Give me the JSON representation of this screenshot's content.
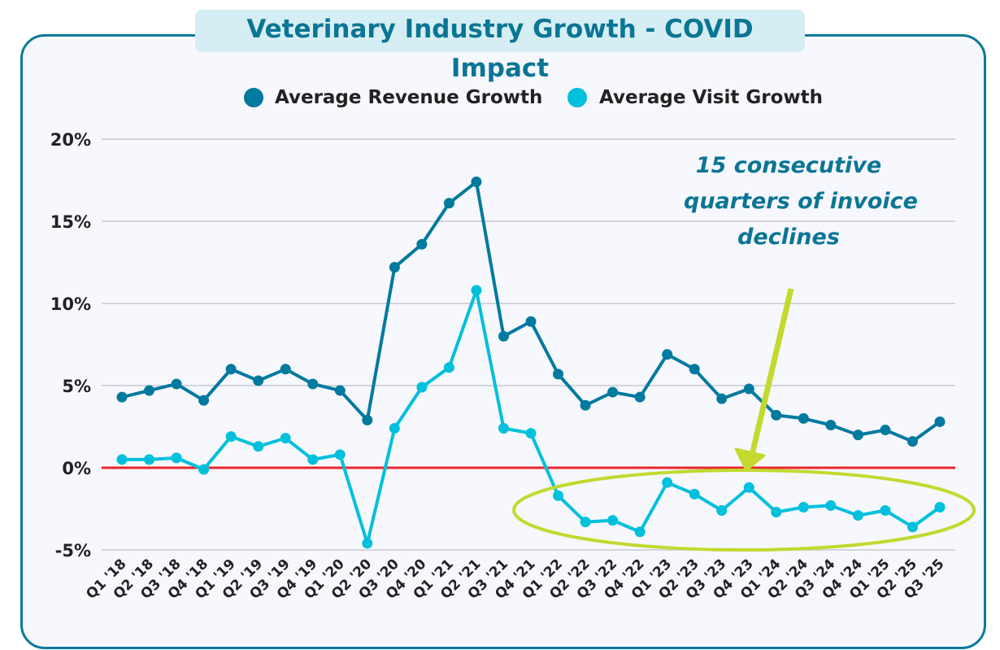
{
  "chart_data": {
    "type": "line",
    "title": "Veterinary Industry Growth - COVID Impact",
    "xlabel": "",
    "ylabel": "",
    "ylim": [
      -5,
      20
    ],
    "yticks": [
      "20%",
      "15%",
      "10%",
      "5%",
      "0%",
      "-5%"
    ],
    "ytick_values": [
      20,
      15,
      10,
      5,
      0,
      -5
    ],
    "grid": true,
    "legend": "top-center",
    "categories": [
      "Q1 '18",
      "Q2 '18",
      "Q3 '18",
      "Q4 '18",
      "Q1 '19",
      "Q2 '19",
      "Q3 '19",
      "Q4 '19",
      "Q1 '20",
      "Q2 '20",
      "Q3 '20",
      "Q4 '20",
      "Q1 '21",
      "Q2 '21",
      "Q3 '21",
      "Q4 '21",
      "Q1 '22",
      "Q2 '22",
      "Q3 '22",
      "Q4 '22",
      "Q1 '23",
      "Q2 '23",
      "Q3 '23",
      "Q4 '23",
      "Q1 '24",
      "Q2 '24",
      "Q3 '24",
      "Q4 '24",
      "Q1 '25",
      "Q2 '25",
      "Q3 '25"
    ],
    "series": [
      {
        "name": "Average Revenue Growth",
        "color": "#007a9e",
        "values": [
          4.3,
          4.7,
          5.1,
          4.1,
          6.0,
          5.3,
          6.0,
          5.1,
          4.7,
          2.9,
          12.2,
          13.6,
          16.1,
          17.4,
          8.0,
          8.9,
          5.7,
          3.8,
          4.6,
          4.3,
          6.9,
          6.0,
          4.2,
          4.8,
          3.2,
          3.0,
          2.6,
          2.0,
          2.3,
          1.6,
          2.8
        ]
      },
      {
        "name": "Average Visit Growth",
        "color": "#00c0dc",
        "values": [
          0.5,
          0.5,
          0.6,
          -0.1,
          1.9,
          1.3,
          1.8,
          0.5,
          0.8,
          -4.6,
          2.4,
          4.9,
          6.1,
          10.8,
          2.4,
          2.1,
          -1.7,
          -3.3,
          -3.2,
          -3.9,
          -0.9,
          -1.6,
          -2.6,
          -1.2,
          -2.7,
          -2.4,
          -2.3,
          -2.9,
          -2.6,
          -3.6,
          -2.4
        ]
      }
    ],
    "reference_line": {
      "value": 0,
      "color": "#e8262b"
    },
    "annotation": {
      "lines": [
        "15 consecutive",
        "quarters of invoice",
        "declines"
      ],
      "color": "#0b7594",
      "highlight_color": "#c3d92e"
    }
  }
}
